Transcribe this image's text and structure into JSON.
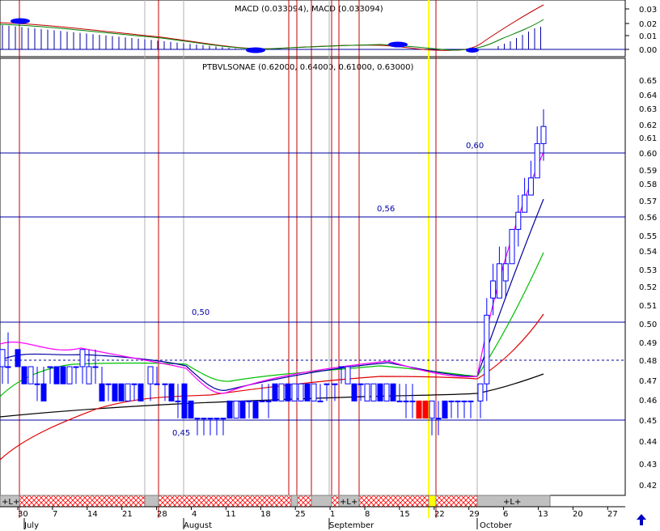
{
  "macd_panel": {
    "title": "MACD (0.033094), MACD (0.033094)",
    "y_ticks": [
      "0.03",
      "0.02",
      "0.01",
      "0.00"
    ]
  },
  "price_panel": {
    "title": "PTBVLSONAE (0.62000, 0.64000, 0.61000, 0.63000)",
    "y_ticks": [
      "0.65",
      "0.64",
      "0.63",
      "0.62",
      "0.61",
      "0.60",
      "0.59",
      "0.58",
      "0.57",
      "0.56",
      "0.55",
      "0.54",
      "0.53",
      "0.52",
      "0.51",
      "0.50",
      "0.49",
      "0.48",
      "0.47",
      "0.46",
      "0.45",
      "0.44",
      "0.43",
      "0.42"
    ],
    "level_labels": [
      "0,60",
      "0,56",
      "0,50",
      "0,45"
    ]
  },
  "timeline": {
    "markers": [
      "+L+",
      "+L+",
      "+L+"
    ],
    "day_labels": [
      "30",
      "7",
      "14",
      "21",
      "28",
      "4",
      "11",
      "18",
      "25",
      "1",
      "8",
      "15",
      "22",
      "29",
      "6",
      "13",
      "20",
      "27"
    ],
    "month_labels": [
      "July",
      "August",
      "September",
      "October"
    ]
  },
  "colors": {
    "candle": "#0000ff",
    "down_red": "#ff0000",
    "level_line": "#0000a0",
    "vline": "#c00000",
    "highlight": "#ffff00",
    "ma_magenta": "#ff00ff",
    "ma_blue": "#0000a0",
    "ma_green": "#00c000",
    "ma_red": "#e00000",
    "ma_black": "#000000"
  },
  "icons": {
    "scroll_up": "up-arrow-icon"
  },
  "chart_data": {
    "type": "candlestick",
    "title": "PTBVLSONAE (0.62000, 0.64000, 0.61000, 0.63000)",
    "ylim": [
      0.415,
      0.665
    ],
    "horizontal_levels": [
      0.6,
      0.56,
      0.5,
      0.45
    ],
    "dashed_level": 0.48,
    "last_ohlc": {
      "open": 0.62,
      "high": 0.64,
      "low": 0.61,
      "close": 0.63
    },
    "candles_recent": [
      {
        "o": 0.47,
        "h": 0.48,
        "l": 0.46,
        "c": 0.48
      },
      {
        "o": 0.48,
        "h": 0.53,
        "l": 0.47,
        "c": 0.52
      },
      {
        "o": 0.53,
        "h": 0.55,
        "l": 0.52,
        "c": 0.54
      },
      {
        "o": 0.53,
        "h": 0.56,
        "l": 0.53,
        "c": 0.55
      },
      {
        "o": 0.54,
        "h": 0.56,
        "l": 0.53,
        "c": 0.55
      },
      {
        "o": 0.55,
        "h": 0.57,
        "l": 0.55,
        "c": 0.57
      },
      {
        "o": 0.57,
        "h": 0.59,
        "l": 0.56,
        "c": 0.58
      },
      {
        "o": 0.58,
        "h": 0.6,
        "l": 0.58,
        "c": 0.59
      },
      {
        "o": 0.59,
        "h": 0.61,
        "l": 0.59,
        "c": 0.6
      },
      {
        "o": 0.6,
        "h": 0.63,
        "l": 0.6,
        "c": 0.62
      },
      {
        "o": 0.62,
        "h": 0.64,
        "l": 0.61,
        "c": 0.63
      }
    ],
    "macd": {
      "value": 0.033094,
      "ylim": [
        -0.003,
        0.035
      ]
    }
  }
}
